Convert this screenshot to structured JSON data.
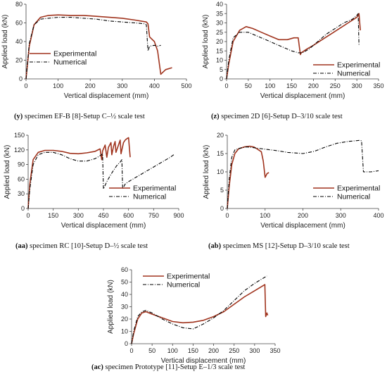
{
  "chart_data": [
    {
      "type": "line",
      "caption": {
        "tag": "(y)",
        "text": " specimen EF-B [8]-Setup C–½ scale test"
      },
      "xlabel": "Vertical displacement (mm)",
      "ylabel": "Applied load (kN)",
      "xlim": [
        0,
        500
      ],
      "ylim": [
        0,
        80
      ],
      "xticks": [
        0,
        100,
        200,
        300,
        400,
        500
      ],
      "yticks": [
        0,
        20,
        40,
        60,
        80
      ],
      "legend": "bottom-left",
      "series": [
        {
          "name": "Experimental",
          "style": "solid",
          "color": "#a0341e",
          "x": [
            0,
            10,
            25,
            45,
            70,
            100,
            140,
            180,
            220,
            260,
            300,
            340,
            375,
            380,
            385,
            400,
            410,
            420,
            435,
            455
          ],
          "y": [
            0,
            35,
            58,
            66,
            68,
            68.5,
            68,
            68,
            67,
            66,
            65,
            63,
            61,
            59,
            45,
            40,
            30,
            5,
            10,
            12
          ]
        },
        {
          "name": "Numerical",
          "style": "dashdot",
          "color": "#000000",
          "x": [
            0,
            10,
            25,
            45,
            70,
            100,
            140,
            180,
            220,
            260,
            300,
            340,
            370,
            375,
            380,
            385,
            400,
            410,
            420
          ],
          "y": [
            0,
            38,
            58,
            64,
            65,
            66,
            66,
            65,
            64,
            62,
            61,
            60,
            59,
            58,
            30,
            35,
            36,
            35,
            36
          ]
        }
      ]
    },
    {
      "type": "line",
      "caption": {
        "tag": "(z)",
        "text": " specimen 2D [6]-Setup D–3/10 scale test"
      },
      "xlabel": "Vertical displacement (mm)",
      "ylabel": "Applied load (kN)",
      "xlim": [
        0,
        350
      ],
      "ylim": [
        0,
        40
      ],
      "xticks": [
        0,
        50,
        100,
        150,
        200,
        250,
        300,
        350
      ],
      "yticks": [
        0,
        5,
        10,
        15,
        20,
        25,
        30,
        35,
        40
      ],
      "legend": "bottom-right",
      "series": [
        {
          "name": "Experimental",
          "style": "solid",
          "color": "#a0341e",
          "x": [
            0,
            5,
            15,
            30,
            45,
            60,
            80,
            100,
            120,
            140,
            155,
            165,
            170,
            172,
            185,
            200,
            220,
            240,
            260,
            280,
            300,
            305,
            308
          ],
          "y": [
            0,
            8,
            20,
            26,
            28,
            27,
            25,
            23,
            21,
            21,
            22,
            22,
            13,
            14,
            16,
            18,
            21,
            24,
            27,
            30,
            33,
            35,
            26
          ]
        },
        {
          "name": "Numerical",
          "style": "dashdot",
          "color": "#000000",
          "x": [
            0,
            5,
            15,
            30,
            50,
            70,
            90,
            110,
            130,
            150,
            165,
            175,
            190,
            210,
            230,
            250,
            270,
            290,
            300,
            303,
            305
          ],
          "y": [
            0,
            10,
            22,
            25,
            25,
            23,
            21,
            19,
            17,
            15,
            14,
            14,
            16,
            20,
            24,
            27,
            30,
            32,
            34,
            35,
            18
          ]
        }
      ]
    },
    {
      "type": "line",
      "caption": {
        "tag": "(aa)",
        "text": " specimen RC [10]-Setup D–½ scale test"
      },
      "xlabel": "Vertical displacement (mm)",
      "ylabel": "Applied load (kN)",
      "xlim": [
        0,
        900
      ],
      "ylim": [
        0,
        150
      ],
      "xticks": [
        0,
        150,
        300,
        450,
        600,
        750,
        900
      ],
      "yticks": [
        0,
        30,
        60,
        90,
        120,
        150
      ],
      "legend": "bottom-right",
      "series": [
        {
          "name": "Experimental",
          "style": "solid",
          "color": "#a0341e",
          "x": [
            0,
            10,
            30,
            60,
            100,
            150,
            200,
            250,
            300,
            350,
            400,
            430,
            440,
            445,
            460,
            470,
            480,
            495,
            500,
            510,
            520,
            525,
            540,
            550,
            555,
            570,
            580,
            590,
            600,
            610
          ],
          "y": [
            0,
            50,
            100,
            115,
            119,
            119,
            117,
            113,
            112,
            114,
            117,
            122,
            100,
            118,
            130,
            105,
            125,
            135,
            110,
            127,
            137,
            115,
            130,
            140,
            112,
            135,
            140,
            143,
            145,
            105
          ]
        },
        {
          "name": "Numerical",
          "style": "dashdot",
          "color": "#000000",
          "x": [
            0,
            10,
            30,
            60,
            100,
            150,
            200,
            250,
            300,
            350,
            400,
            430,
            445,
            450,
            470,
            490,
            510,
            530,
            550,
            560,
            565,
            580,
            600,
            650,
            700,
            750,
            800,
            850,
            870
          ],
          "y": [
            0,
            40,
            90,
            110,
            115,
            115,
            110,
            102,
            97,
            97,
            102,
            108,
            112,
            40,
            55,
            67,
            78,
            88,
            95,
            100,
            40,
            50,
            55,
            65,
            75,
            85,
            95,
            105,
            110
          ]
        }
      ]
    },
    {
      "type": "line",
      "caption": {
        "tag": "(ab)",
        "text": " specimen MS [12]-Setup D–3/10 scale test"
      },
      "xlabel": "Vertical displacement (mm)",
      "ylabel": "Applied load (kN)",
      "xlim": [
        0,
        400
      ],
      "ylim": [
        0,
        20
      ],
      "xticks": [
        0,
        100,
        200,
        300,
        400
      ],
      "yticks": [
        0,
        5,
        10,
        15,
        20
      ],
      "legend": "bottom-right",
      "series": [
        {
          "name": "Experimental",
          "style": "solid",
          "color": "#a0341e",
          "x": [
            0,
            5,
            12,
            20,
            30,
            45,
            60,
            70,
            80,
            90,
            95,
            100,
            105,
            110
          ],
          "y": [
            0,
            6,
            12,
            15,
            16.3,
            16.8,
            17,
            16.8,
            16.2,
            15.5,
            13,
            8.5,
            9.5,
            9.8
          ]
        },
        {
          "name": "Numerical",
          "style": "dashdot",
          "color": "#000000",
          "x": [
            0,
            5,
            12,
            20,
            35,
            50,
            70,
            100,
            130,
            160,
            200,
            230,
            260,
            290,
            320,
            350,
            355,
            360,
            380,
            400
          ],
          "y": [
            0,
            8,
            14,
            16,
            16.5,
            16.8,
            16.6,
            16.2,
            15.8,
            15.3,
            15,
            15.6,
            16.8,
            17.8,
            18.3,
            18.6,
            18.5,
            10,
            10,
            10.3
          ]
        }
      ]
    },
    {
      "type": "line",
      "caption": {
        "tag": "(ac)",
        "text": " specimen Prototype [11]-Setup E–1/3 scale test"
      },
      "xlabel": "Vertical displacement (mm)",
      "ylabel": "Applied load (kN)",
      "xlim": [
        0,
        350
      ],
      "ylim": [
        0,
        60
      ],
      "xticks": [
        0,
        50,
        100,
        150,
        200,
        250,
        300,
        350
      ],
      "yticks": [
        0,
        10,
        20,
        30,
        40,
        50,
        60
      ],
      "legend": "top-left",
      "series": [
        {
          "name": "Experimental",
          "style": "solid",
          "color": "#a0341e",
          "x": [
            0,
            5,
            15,
            25,
            35,
            50,
            75,
            100,
            125,
            150,
            175,
            200,
            225,
            250,
            275,
            300,
            320,
            325,
            327,
            330,
            332
          ],
          "y": [
            0,
            8,
            20,
            25,
            26,
            24,
            21,
            18,
            17,
            17.5,
            19,
            22,
            26,
            32,
            38,
            43,
            47,
            48,
            22,
            25,
            23
          ]
        },
        {
          "name": "Numerical",
          "style": "dashdot",
          "color": "#000000",
          "x": [
            0,
            5,
            15,
            25,
            35,
            50,
            75,
            100,
            125,
            150,
            175,
            200,
            225,
            250,
            275,
            300,
            320,
            330
          ],
          "y": [
            0,
            10,
            22,
            26,
            27,
            25,
            20,
            16,
            13,
            12,
            16,
            21,
            27,
            35,
            43,
            49,
            53,
            55
          ]
        }
      ]
    }
  ]
}
